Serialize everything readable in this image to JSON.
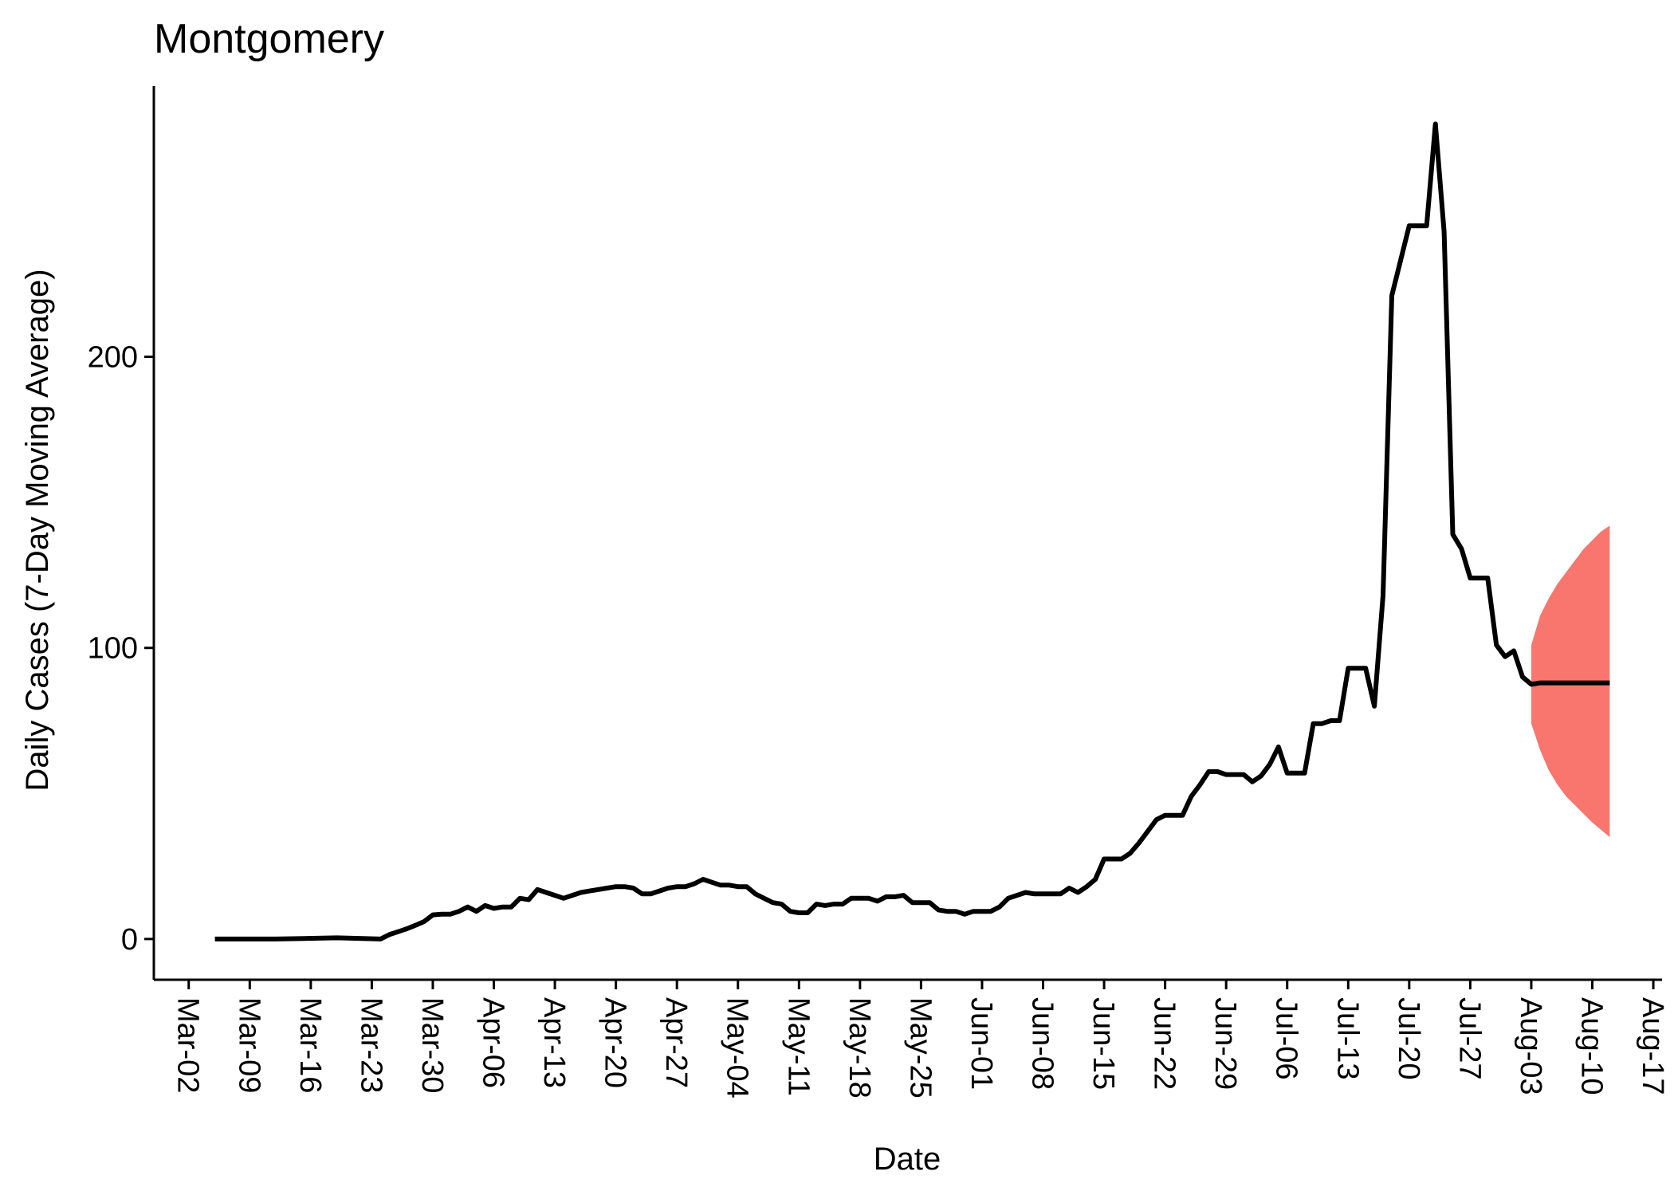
{
  "chart_data": {
    "type": "line",
    "title": "Montgomery",
    "xlabel": "Date",
    "ylabel": "Daily Cases (7-Day Moving Average)",
    "ylim": [
      -14,
      293
    ],
    "xlim": [
      "2020-02-27",
      "2020-08-18"
    ],
    "yticks": [
      0,
      100,
      200
    ],
    "xtick_labels": [
      "Mar-02",
      "Mar-09",
      "Mar-16",
      "Mar-23",
      "Mar-30",
      "Apr-06",
      "Apr-13",
      "Apr-20",
      "Apr-27",
      "May-04",
      "May-11",
      "May-18",
      "May-25",
      "Jun-01",
      "Jun-08",
      "Jun-15",
      "Jun-22",
      "Jun-29",
      "Jul-06",
      "Jul-13",
      "Jul-20",
      "Jul-27",
      "Aug-03",
      "Aug-10",
      "Aug-17"
    ],
    "xtick_dates": [
      "2020-03-02",
      "2020-03-09",
      "2020-03-16",
      "2020-03-23",
      "2020-03-30",
      "2020-04-06",
      "2020-04-13",
      "2020-04-20",
      "2020-04-27",
      "2020-05-04",
      "2020-05-11",
      "2020-05-18",
      "2020-05-25",
      "2020-06-01",
      "2020-06-08",
      "2020-06-15",
      "2020-06-22",
      "2020-06-29",
      "2020-07-06",
      "2020-07-13",
      "2020-07-20",
      "2020-07-27",
      "2020-08-03",
      "2020-08-10",
      "2020-08-17"
    ],
    "grid": false,
    "colors": {
      "line": "#000000",
      "forecast_band": "#f8766d"
    },
    "series": [
      {
        "points": [
          [
            "2020-03-05",
            0
          ],
          [
            "2020-03-12",
            0
          ],
          [
            "2020-03-19",
            0.4
          ],
          [
            "2020-03-24",
            0
          ],
          [
            "2020-03-25",
            1.5
          ],
          [
            "2020-03-26",
            2.5
          ],
          [
            "2020-03-27",
            3.5
          ],
          [
            "2020-03-28",
            4.7
          ],
          [
            "2020-03-29",
            6
          ],
          [
            "2020-03-30",
            8.3
          ],
          [
            "2020-03-31",
            8.5
          ],
          [
            "2020-04-01",
            8.5
          ],
          [
            "2020-04-02",
            9.5
          ],
          [
            "2020-04-03",
            11
          ],
          [
            "2020-04-04",
            9.5
          ],
          [
            "2020-04-05",
            11.5
          ],
          [
            "2020-04-06",
            10.5
          ],
          [
            "2020-04-07",
            11
          ],
          [
            "2020-04-08",
            11
          ],
          [
            "2020-04-09",
            14
          ],
          [
            "2020-04-10",
            13.5
          ],
          [
            "2020-04-11",
            17
          ],
          [
            "2020-04-12",
            16
          ],
          [
            "2020-04-13",
            15
          ],
          [
            "2020-04-14",
            14
          ],
          [
            "2020-04-15",
            15
          ],
          [
            "2020-04-16",
            16
          ],
          [
            "2020-04-17",
            16.5
          ],
          [
            "2020-04-18",
            17
          ],
          [
            "2020-04-19",
            17.5
          ],
          [
            "2020-04-20",
            18
          ],
          [
            "2020-04-21",
            18
          ],
          [
            "2020-04-22",
            17.5
          ],
          [
            "2020-04-23",
            15.5
          ],
          [
            "2020-04-24",
            15.5
          ],
          [
            "2020-04-25",
            16.5
          ],
          [
            "2020-04-26",
            17.5
          ],
          [
            "2020-04-27",
            18
          ],
          [
            "2020-04-28",
            18
          ],
          [
            "2020-04-29",
            19
          ],
          [
            "2020-04-30",
            20.5
          ],
          [
            "2020-05-01",
            19.5
          ],
          [
            "2020-05-02",
            18.5
          ],
          [
            "2020-05-03",
            18.5
          ],
          [
            "2020-05-04",
            18
          ],
          [
            "2020-05-05",
            18
          ],
          [
            "2020-05-06",
            15.5
          ],
          [
            "2020-05-07",
            14
          ],
          [
            "2020-05-08",
            12.5
          ],
          [
            "2020-05-09",
            12
          ],
          [
            "2020-05-10",
            9.5
          ],
          [
            "2020-05-11",
            9
          ],
          [
            "2020-05-12",
            9
          ],
          [
            "2020-05-13",
            12
          ],
          [
            "2020-05-14",
            11.5
          ],
          [
            "2020-05-15",
            12
          ],
          [
            "2020-05-16",
            12
          ],
          [
            "2020-05-17",
            14
          ],
          [
            "2020-05-18",
            14
          ],
          [
            "2020-05-19",
            14
          ],
          [
            "2020-05-20",
            13
          ],
          [
            "2020-05-21",
            14.5
          ],
          [
            "2020-05-22",
            14.5
          ],
          [
            "2020-05-23",
            15
          ],
          [
            "2020-05-24",
            12.5
          ],
          [
            "2020-05-25",
            12.5
          ],
          [
            "2020-05-26",
            12.5
          ],
          [
            "2020-05-27",
            10
          ],
          [
            "2020-05-28",
            9.5
          ],
          [
            "2020-05-29",
            9.5
          ],
          [
            "2020-05-30",
            8.5
          ],
          [
            "2020-05-31",
            9.5
          ],
          [
            "2020-06-01",
            9.5
          ],
          [
            "2020-06-02",
            9.5
          ],
          [
            "2020-06-03",
            11
          ],
          [
            "2020-06-04",
            14
          ],
          [
            "2020-06-05",
            15
          ],
          [
            "2020-06-06",
            16
          ],
          [
            "2020-06-07",
            15.5
          ],
          [
            "2020-06-08",
            15.5
          ],
          [
            "2020-06-09",
            15.5
          ],
          [
            "2020-06-10",
            15.5
          ],
          [
            "2020-06-11",
            17.5
          ],
          [
            "2020-06-12",
            16
          ],
          [
            "2020-06-13",
            18
          ],
          [
            "2020-06-14",
            20.5
          ],
          [
            "2020-06-15",
            27.5
          ],
          [
            "2020-06-16",
            27.5
          ],
          [
            "2020-06-17",
            27.5
          ],
          [
            "2020-06-18",
            29.5
          ],
          [
            "2020-06-19",
            33
          ],
          [
            "2020-06-20",
            37
          ],
          [
            "2020-06-21",
            41
          ],
          [
            "2020-06-22",
            42.5
          ],
          [
            "2020-06-23",
            42.5
          ],
          [
            "2020-06-24",
            42.5
          ],
          [
            "2020-06-25",
            49
          ],
          [
            "2020-06-26",
            53
          ],
          [
            "2020-06-27",
            57.5
          ],
          [
            "2020-06-28",
            57.5
          ],
          [
            "2020-06-29",
            56.5
          ],
          [
            "2020-06-30",
            56.5
          ],
          [
            "2020-07-01",
            56.5
          ],
          [
            "2020-07-02",
            54
          ],
          [
            "2020-07-03",
            56
          ],
          [
            "2020-07-04",
            60
          ],
          [
            "2020-07-05",
            66
          ],
          [
            "2020-07-06",
            57
          ],
          [
            "2020-07-07",
            57
          ],
          [
            "2020-07-08",
            57
          ],
          [
            "2020-07-09",
            74
          ],
          [
            "2020-07-10",
            74
          ],
          [
            "2020-07-11",
            75
          ],
          [
            "2020-07-12",
            75
          ],
          [
            "2020-07-13",
            93
          ],
          [
            "2020-07-14",
            93
          ],
          [
            "2020-07-15",
            93
          ],
          [
            "2020-07-16",
            80
          ],
          [
            "2020-07-17",
            118
          ],
          [
            "2020-07-18",
            221
          ],
          [
            "2020-07-19",
            233
          ],
          [
            "2020-07-20",
            245
          ],
          [
            "2020-07-21",
            245
          ],
          [
            "2020-07-22",
            245
          ],
          [
            "2020-07-23",
            280
          ],
          [
            "2020-07-24",
            243
          ],
          [
            "2020-07-25",
            139
          ],
          [
            "2020-07-26",
            134
          ],
          [
            "2020-07-27",
            124
          ],
          [
            "2020-07-28",
            124
          ],
          [
            "2020-07-29",
            124
          ],
          [
            "2020-07-30",
            101
          ],
          [
            "2020-07-31",
            97
          ],
          [
            "2020-08-01",
            99
          ],
          [
            "2020-08-02",
            90
          ],
          [
            "2020-08-03",
            87.5
          ],
          [
            "2020-08-04",
            88
          ],
          [
            "2020-08-12",
            88
          ]
        ]
      }
    ],
    "forecast_band": {
      "x": [
        "2020-08-03",
        "2020-08-04",
        "2020-08-05",
        "2020-08-06",
        "2020-08-07",
        "2020-08-08",
        "2020-08-09",
        "2020-08-10",
        "2020-08-11",
        "2020-08-12"
      ],
      "lower": [
        74,
        65,
        58,
        53,
        49,
        46,
        43,
        40,
        37.5,
        35
      ],
      "upper": [
        101,
        111,
        117,
        122,
        126,
        130,
        134,
        137,
        140,
        142
      ]
    }
  }
}
